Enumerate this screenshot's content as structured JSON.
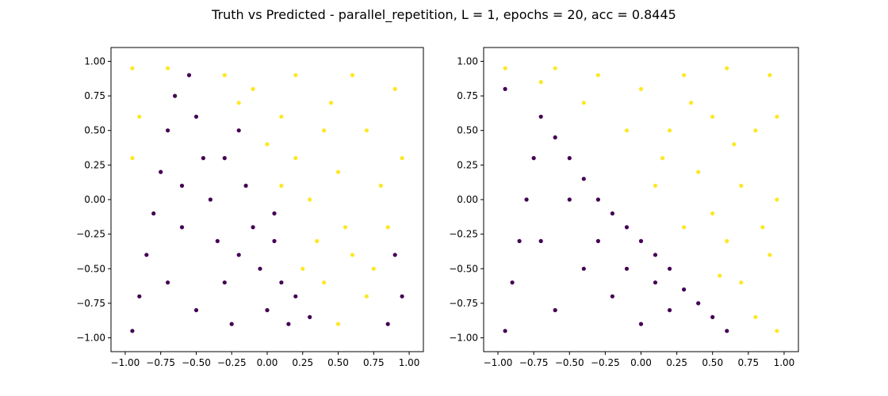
{
  "suptitle": "Truth vs Predicted - parallel_repetition, L = 1, epochs = 20, acc = 0.8445",
  "colors": {
    "class0": "#440154",
    "class1": "#fde725",
    "axes": "#000000",
    "background": "#ffffff"
  },
  "chart_data": [
    {
      "type": "scatter",
      "title": "",
      "xlabel": "",
      "ylabel": "",
      "xlim": [
        -1.1,
        1.1
      ],
      "ylim": [
        -1.1,
        1.1
      ],
      "grid": false,
      "xticks": [
        -1.0,
        -0.75,
        -0.5,
        -0.25,
        0.0,
        0.25,
        0.5,
        0.75,
        1.0
      ],
      "xtick_labels": [
        "−1.00",
        "−0.75",
        "−0.50",
        "−0.25",
        "0.00",
        "0.25",
        "0.50",
        "0.75",
        "1.00"
      ],
      "yticks": [
        -1.0,
        -0.75,
        -0.5,
        -0.25,
        0.0,
        0.25,
        0.5,
        0.75,
        1.0
      ],
      "ytick_labels": [
        "−1.00",
        "−0.75",
        "−0.50",
        "−0.25",
        "0.00",
        "0.25",
        "0.50",
        "0.75",
        "1.00"
      ],
      "series": [
        {
          "color": "#440154",
          "points": [
            [
              -0.95,
              -0.95
            ],
            [
              -0.9,
              -0.7
            ],
            [
              -0.85,
              -0.4
            ],
            [
              -0.8,
              -0.1
            ],
            [
              -0.75,
              0.2
            ],
            [
              -0.7,
              0.5
            ],
            [
              -0.65,
              0.75
            ],
            [
              -0.55,
              0.9
            ],
            [
              -0.5,
              0.6
            ],
            [
              -0.45,
              0.3
            ],
            [
              -0.4,
              0.0
            ],
            [
              -0.35,
              -0.3
            ],
            [
              -0.3,
              -0.6
            ],
            [
              -0.25,
              -0.9
            ],
            [
              -0.2,
              0.5
            ],
            [
              -0.15,
              0.1
            ],
            [
              -0.1,
              -0.2
            ],
            [
              -0.05,
              -0.5
            ],
            [
              0.0,
              -0.8
            ],
            [
              0.05,
              -0.3
            ],
            [
              0.1,
              -0.6
            ],
            [
              0.15,
              -0.9
            ],
            [
              0.2,
              -0.7
            ],
            [
              0.3,
              -0.85
            ],
            [
              0.9,
              -0.4
            ],
            [
              0.95,
              -0.7
            ],
            [
              0.85,
              -0.9
            ],
            [
              -0.6,
              -0.2
            ],
            [
              -0.6,
              0.1
            ],
            [
              -0.3,
              0.3
            ],
            [
              -0.7,
              -0.6
            ],
            [
              -0.5,
              -0.8
            ],
            [
              -0.2,
              -0.4
            ],
            [
              0.05,
              -0.1
            ]
          ]
        },
        {
          "color": "#fde725",
          "points": [
            [
              -0.95,
              0.95
            ],
            [
              -0.9,
              0.6
            ],
            [
              -0.95,
              0.3
            ],
            [
              -0.7,
              0.95
            ],
            [
              -0.3,
              0.9
            ],
            [
              -0.1,
              0.8
            ],
            [
              0.1,
              0.6
            ],
            [
              0.2,
              0.3
            ],
            [
              0.3,
              0.0
            ],
            [
              0.35,
              -0.3
            ],
            [
              0.4,
              -0.6
            ],
            [
              0.5,
              -0.9
            ],
            [
              0.6,
              0.9
            ],
            [
              0.7,
              0.5
            ],
            [
              0.8,
              0.1
            ],
            [
              0.85,
              -0.2
            ],
            [
              0.6,
              -0.4
            ],
            [
              0.7,
              -0.7
            ],
            [
              0.5,
              0.2
            ],
            [
              0.9,
              0.8
            ],
            [
              0.95,
              0.3
            ],
            [
              0.2,
              0.9
            ],
            [
              0.4,
              0.5
            ],
            [
              0.0,
              0.4
            ],
            [
              0.25,
              -0.5
            ],
            [
              0.55,
              -0.2
            ],
            [
              0.75,
              -0.5
            ],
            [
              0.45,
              0.7
            ],
            [
              -0.2,
              0.7
            ],
            [
              0.1,
              0.1
            ]
          ]
        }
      ]
    },
    {
      "type": "scatter",
      "title": "",
      "xlabel": "",
      "ylabel": "",
      "xlim": [
        -1.1,
        1.1
      ],
      "ylim": [
        -1.1,
        1.1
      ],
      "grid": false,
      "xticks": [
        -1.0,
        -0.75,
        -0.5,
        -0.25,
        0.0,
        0.25,
        0.5,
        0.75,
        1.0
      ],
      "xtick_labels": [
        "−1.00",
        "−0.75",
        "−0.50",
        "−0.25",
        "0.00",
        "0.25",
        "0.50",
        "0.75",
        "1.00"
      ],
      "yticks": [
        -1.0,
        -0.75,
        -0.5,
        -0.25,
        0.0,
        0.25,
        0.5,
        0.75,
        1.0
      ],
      "ytick_labels": [
        "−1.00",
        "−0.75",
        "−0.50",
        "−0.25",
        "0.00",
        "0.25",
        "0.50",
        "0.75",
        "1.00"
      ],
      "series": [
        {
          "color": "#440154",
          "points": [
            [
              -0.95,
              -0.95
            ],
            [
              -0.9,
              -0.6
            ],
            [
              -0.85,
              -0.3
            ],
            [
              -0.8,
              0.0
            ],
            [
              -0.75,
              0.3
            ],
            [
              -0.7,
              0.6
            ],
            [
              -0.95,
              0.8
            ],
            [
              -0.6,
              0.45
            ],
            [
              -0.5,
              0.3
            ],
            [
              -0.4,
              0.15
            ],
            [
              -0.3,
              0.0
            ],
            [
              -0.2,
              -0.1
            ],
            [
              -0.1,
              -0.2
            ],
            [
              0.0,
              -0.3
            ],
            [
              0.1,
              -0.4
            ],
            [
              0.2,
              -0.5
            ],
            [
              0.3,
              -0.65
            ],
            [
              0.4,
              -0.75
            ],
            [
              0.5,
              -0.85
            ],
            [
              0.6,
              -0.95
            ],
            [
              -0.6,
              -0.8
            ],
            [
              -0.4,
              -0.5
            ],
            [
              -0.2,
              -0.7
            ],
            [
              0.0,
              -0.9
            ],
            [
              0.2,
              -0.8
            ],
            [
              -0.5,
              0.0
            ],
            [
              -0.7,
              -0.3
            ],
            [
              -0.3,
              -0.3
            ],
            [
              0.1,
              -0.6
            ],
            [
              -0.1,
              -0.5
            ]
          ]
        },
        {
          "color": "#fde725",
          "points": [
            [
              -0.95,
              0.95
            ],
            [
              -0.6,
              0.95
            ],
            [
              -0.3,
              0.9
            ],
            [
              0.0,
              0.8
            ],
            [
              0.3,
              0.9
            ],
            [
              0.6,
              0.95
            ],
            [
              0.9,
              0.9
            ],
            [
              0.2,
              0.5
            ],
            [
              0.5,
              0.6
            ],
            [
              0.8,
              0.5
            ],
            [
              0.1,
              0.1
            ],
            [
              0.4,
              0.2
            ],
            [
              0.7,
              0.1
            ],
            [
              0.95,
              0.0
            ],
            [
              0.3,
              -0.2
            ],
            [
              0.6,
              -0.3
            ],
            [
              0.9,
              -0.4
            ],
            [
              0.7,
              -0.6
            ],
            [
              0.8,
              -0.85
            ],
            [
              0.95,
              -0.95
            ],
            [
              -0.4,
              0.7
            ],
            [
              -0.1,
              0.5
            ],
            [
              0.5,
              -0.1
            ],
            [
              0.85,
              -0.2
            ],
            [
              0.65,
              0.4
            ],
            [
              0.35,
              0.7
            ],
            [
              -0.7,
              0.85
            ],
            [
              0.15,
              0.3
            ],
            [
              0.55,
              -0.55
            ],
            [
              0.95,
              0.6
            ]
          ]
        }
      ]
    }
  ]
}
